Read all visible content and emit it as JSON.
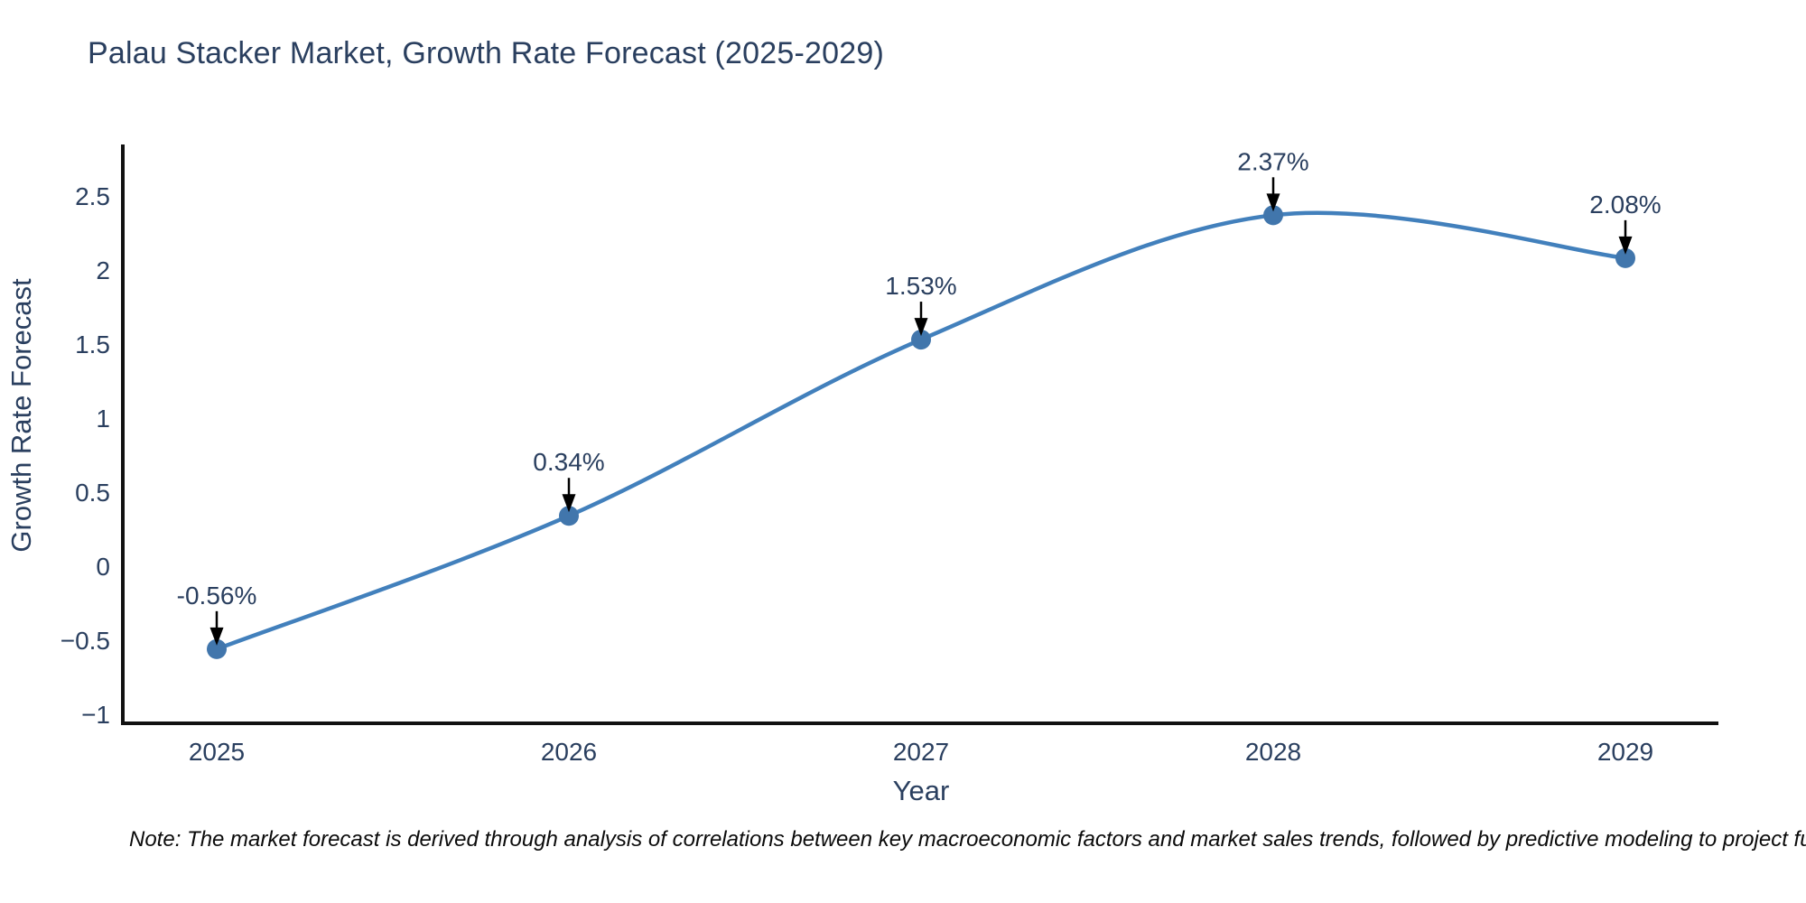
{
  "chart": {
    "title": "Palau Stacker Market, Growth Rate Forecast (2025-2029)"
  },
  "chart_data": {
    "type": "line",
    "curve": "spline",
    "title": "Palau Stacker Market, Growth Rate Forecast (2025-2029)",
    "xlabel": "Year",
    "ylabel": "Growth Rate Forecast",
    "categories": [
      "2025",
      "2026",
      "2027",
      "2028",
      "2029"
    ],
    "values": [
      -0.56,
      0.34,
      1.53,
      2.37,
      2.08
    ],
    "point_labels": [
      "-0.56%",
      "0.34%",
      "1.53%",
      "2.37%",
      "2.08%"
    ],
    "y_tick_values": [
      2.5,
      2,
      1.5,
      1,
      0.5,
      0,
      -0.5,
      -1
    ],
    "y_tick_labels": [
      "2.5",
      "2",
      "1.5",
      "1",
      "0.5",
      "0",
      "−0.5",
      "−1"
    ],
    "ylim": [
      -1.07,
      2.9
    ],
    "grid": false,
    "legend": "none",
    "annotation_arrows": true,
    "colors": {
      "line": "#4280bc",
      "marker": "#4176ac",
      "text": "#2a3f5f",
      "axis": "#111111",
      "arrow": "#000000"
    }
  },
  "footnote": "Note: The market forecast is derived through analysis of correlations between key macroeconomic factors and market sales trends, followed by predictive modeling to project future sa"
}
